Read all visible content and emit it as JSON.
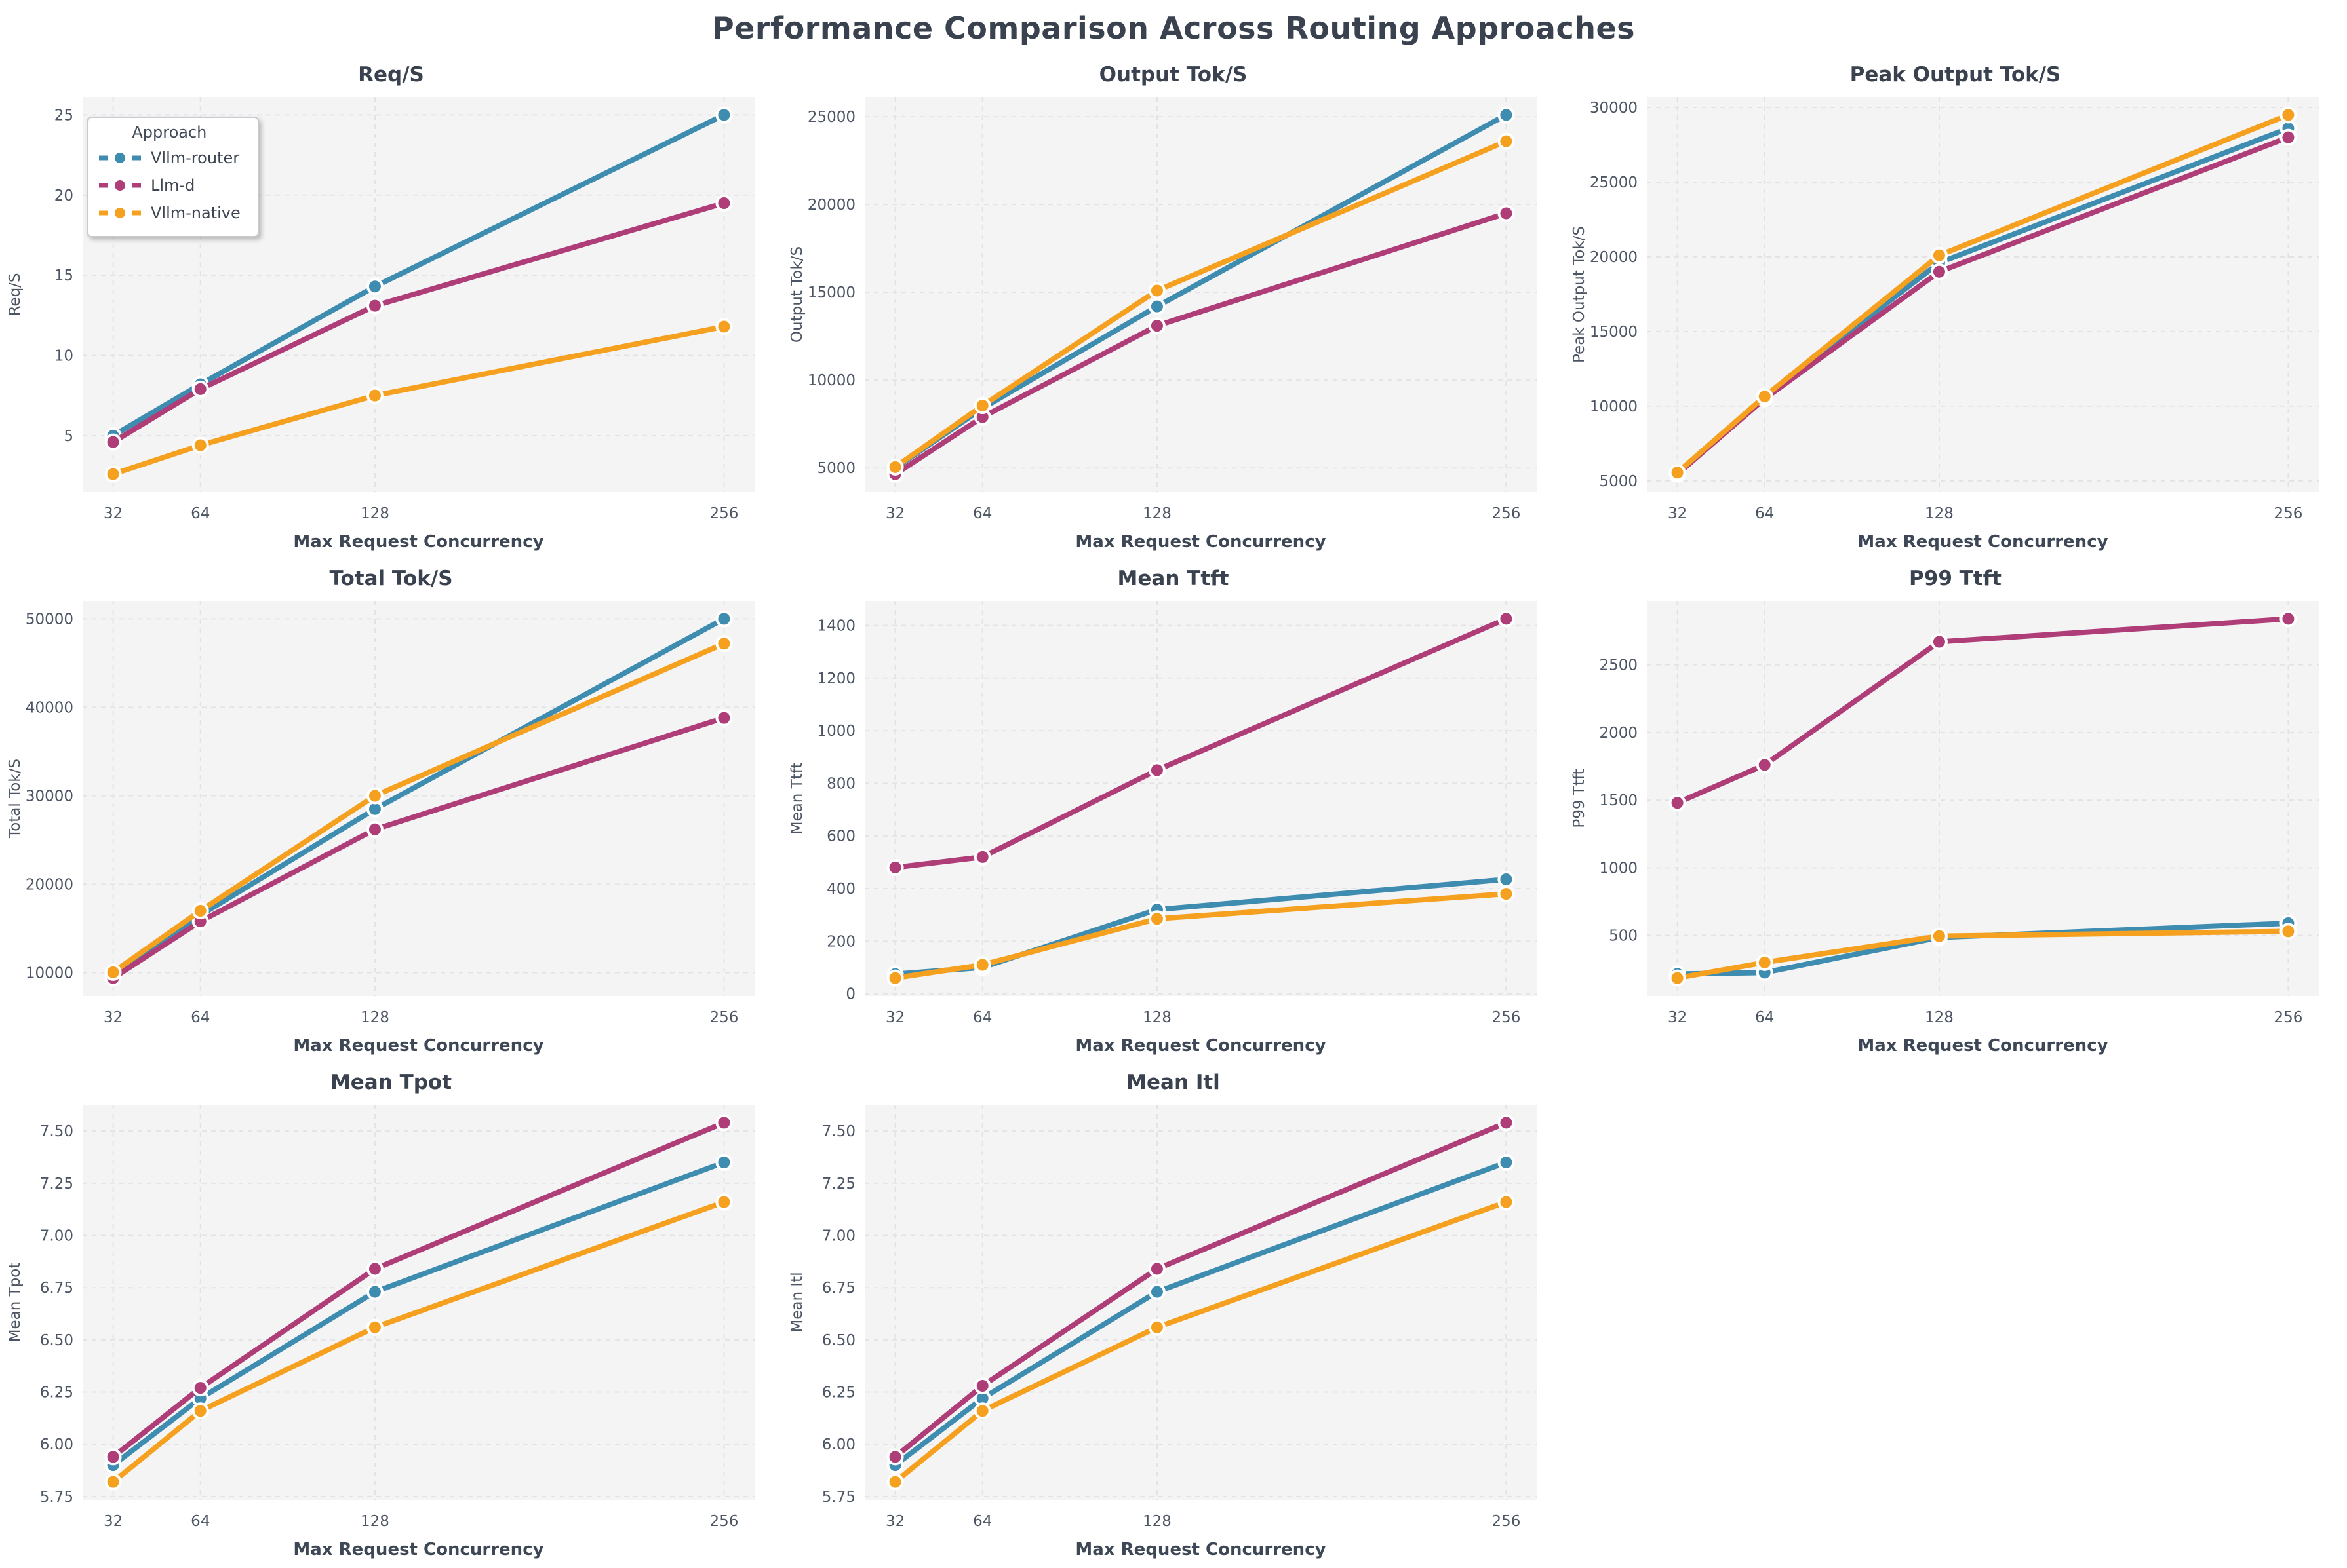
{
  "page_title": "Performance Comparison Across Routing Approaches",
  "colors": {
    "vllm_router": "#3e8cb0",
    "llm_d": "#ae3d78",
    "vllm_native": "#f5a01e",
    "plot_bg": "#f4f4f5",
    "grid": "#e3e3e7",
    "title_text": "#39424e",
    "tick_text": "#4c5563",
    "axis_label_text": "#3d4755"
  },
  "legend": {
    "title": "Approach",
    "entries": [
      "Vllm-router",
      "Llm-d",
      "Vllm-native"
    ]
  },
  "x_axis": {
    "label": "Max Request Concurrency",
    "tick_labels": [
      "32",
      "64",
      "128",
      "256"
    ],
    "values": [
      32,
      64,
      128,
      256
    ],
    "scale": "linear"
  },
  "chart_data": [
    {
      "type": "line",
      "title": "Req/S",
      "ylabel": "Req/S",
      "xlabel": "Max Request Concurrency",
      "x": [
        32,
        64,
        128,
        256
      ],
      "ytick_labels": [
        "5",
        "10",
        "15",
        "20",
        "25"
      ],
      "ytick_values": [
        5,
        10,
        15,
        20,
        25
      ],
      "grid": true,
      "legend_position": "upper-left",
      "series": [
        {
          "name": "Vllm-router",
          "color": "#3e8cb0",
          "values": [
            5.0,
            8.2,
            14.3,
            25.0
          ]
        },
        {
          "name": "Llm-d",
          "color": "#ae3d78",
          "values": [
            4.6,
            7.9,
            13.1,
            19.5
          ]
        },
        {
          "name": "Vllm-native",
          "color": "#f5a01e",
          "values": [
            2.6,
            4.4,
            7.5,
            11.8
          ]
        }
      ]
    },
    {
      "type": "line",
      "title": "Output Tok/S",
      "ylabel": "Output Tok/S",
      "xlabel": "Max Request Concurrency",
      "x": [
        32,
        64,
        128,
        256
      ],
      "ytick_labels": [
        "5000",
        "10000",
        "15000",
        "20000",
        "25000"
      ],
      "ytick_values": [
        5000,
        10000,
        15000,
        20000,
        25000
      ],
      "grid": true,
      "series": [
        {
          "name": "Vllm-router",
          "color": "#3e8cb0",
          "values": [
            5000,
            8400,
            14200,
            25100
          ]
        },
        {
          "name": "Llm-d",
          "color": "#ae3d78",
          "values": [
            4650,
            7900,
            13100,
            19500
          ]
        },
        {
          "name": "Vllm-native",
          "color": "#f5a01e",
          "values": [
            5050,
            8550,
            15100,
            23600
          ]
        }
      ]
    },
    {
      "type": "line",
      "title": "Peak Output Tok/S",
      "ylabel": "Peak Output Tok/S",
      "xlabel": "Max Request Concurrency",
      "x": [
        32,
        64,
        128,
        256
      ],
      "ytick_labels": [
        "5000",
        "10000",
        "15000",
        "20000",
        "25000",
        "30000"
      ],
      "ytick_values": [
        5000,
        10000,
        15000,
        20000,
        25000,
        30000
      ],
      "grid": true,
      "series": [
        {
          "name": "Vllm-router",
          "color": "#3e8cb0",
          "values": [
            5500,
            10600,
            19600,
            28600
          ]
        },
        {
          "name": "Llm-d",
          "color": "#ae3d78",
          "values": [
            5450,
            10500,
            19000,
            28000
          ]
        },
        {
          "name": "Vllm-native",
          "color": "#f5a01e",
          "values": [
            5550,
            10650,
            20100,
            29500
          ]
        }
      ]
    },
    {
      "type": "line",
      "title": "Total Tok/S",
      "ylabel": "Total Tok/S",
      "xlabel": "Max Request Concurrency",
      "x": [
        32,
        64,
        128,
        256
      ],
      "ytick_labels": [
        "10000",
        "20000",
        "30000",
        "40000",
        "50000"
      ],
      "ytick_values": [
        10000,
        20000,
        30000,
        40000,
        50000
      ],
      "grid": true,
      "series": [
        {
          "name": "Vllm-router",
          "color": "#3e8cb0",
          "values": [
            10000,
            16500,
            28500,
            50000
          ]
        },
        {
          "name": "Llm-d",
          "color": "#ae3d78",
          "values": [
            9400,
            15800,
            26200,
            38800
          ]
        },
        {
          "name": "Vllm-native",
          "color": "#f5a01e",
          "values": [
            10050,
            17000,
            30000,
            47200
          ]
        }
      ]
    },
    {
      "type": "line",
      "title": "Mean Ttft",
      "ylabel": "Mean Ttft",
      "xlabel": "Max Request Concurrency",
      "x": [
        32,
        64,
        128,
        256
      ],
      "ytick_labels": [
        "0",
        "200",
        "400",
        "600",
        "800",
        "1000",
        "1200",
        "1400"
      ],
      "ytick_values": [
        0,
        200,
        400,
        600,
        800,
        1000,
        1200,
        1400
      ],
      "grid": true,
      "series": [
        {
          "name": "Vllm-router",
          "color": "#3e8cb0",
          "values": [
            75,
            100,
            320,
            435
          ]
        },
        {
          "name": "Llm-d",
          "color": "#ae3d78",
          "values": [
            480,
            520,
            850,
            1425
          ]
        },
        {
          "name": "Vllm-native",
          "color": "#f5a01e",
          "values": [
            60,
            110,
            285,
            380
          ]
        }
      ]
    },
    {
      "type": "line",
      "title": "P99 Ttft",
      "ylabel": "P99 Ttft",
      "xlabel": "Max Request Concurrency",
      "x": [
        32,
        64,
        128,
        256
      ],
      "ytick_labels": [
        "500",
        "1000",
        "1500",
        "2000",
        "2500"
      ],
      "ytick_values": [
        500,
        1000,
        1500,
        2000,
        2500
      ],
      "grid": true,
      "series": [
        {
          "name": "Vllm-router",
          "color": "#3e8cb0",
          "values": [
            215,
            225,
            485,
            590
          ]
        },
        {
          "name": "Llm-d",
          "color": "#ae3d78",
          "values": [
            1480,
            1760,
            2670,
            2840
          ]
        },
        {
          "name": "Vllm-native",
          "color": "#f5a01e",
          "values": [
            185,
            300,
            495,
            530
          ]
        }
      ]
    },
    {
      "type": "line",
      "title": "Mean Tpot",
      "ylabel": "Mean Tpot",
      "xlabel": "Max Request Concurrency",
      "x": [
        32,
        64,
        128,
        256
      ],
      "ytick_labels": [
        "5.75",
        "6.00",
        "6.25",
        "6.50",
        "6.75",
        "7.00",
        "7.25",
        "7.50"
      ],
      "ytick_values": [
        5.75,
        6.0,
        6.25,
        6.5,
        6.75,
        7.0,
        7.25,
        7.5
      ],
      "grid": true,
      "series": [
        {
          "name": "Vllm-router",
          "color": "#3e8cb0",
          "values": [
            5.9,
            6.22,
            6.73,
            7.35
          ]
        },
        {
          "name": "Llm-d",
          "color": "#ae3d78",
          "values": [
            5.94,
            6.27,
            6.84,
            7.54
          ]
        },
        {
          "name": "Vllm-native",
          "color": "#f5a01e",
          "values": [
            5.82,
            6.16,
            6.56,
            7.16
          ]
        }
      ]
    },
    {
      "type": "line",
      "title": "Mean Itl",
      "ylabel": "Mean Itl",
      "xlabel": "Max Request Concurrency",
      "x": [
        32,
        64,
        128,
        256
      ],
      "ytick_labels": [
        "5.75",
        "6.00",
        "6.25",
        "6.50",
        "6.75",
        "7.00",
        "7.25",
        "7.50"
      ],
      "ytick_values": [
        5.75,
        6.0,
        6.25,
        6.5,
        6.75,
        7.0,
        7.25,
        7.5
      ],
      "grid": true,
      "series": [
        {
          "name": "Vllm-router",
          "color": "#3e8cb0",
          "values": [
            5.9,
            6.22,
            6.73,
            7.35
          ]
        },
        {
          "name": "Llm-d",
          "color": "#ae3d78",
          "values": [
            5.94,
            6.28,
            6.84,
            7.54
          ]
        },
        {
          "name": "Vllm-native",
          "color": "#f5a01e",
          "values": [
            5.82,
            6.16,
            6.56,
            7.16
          ]
        }
      ]
    }
  ]
}
